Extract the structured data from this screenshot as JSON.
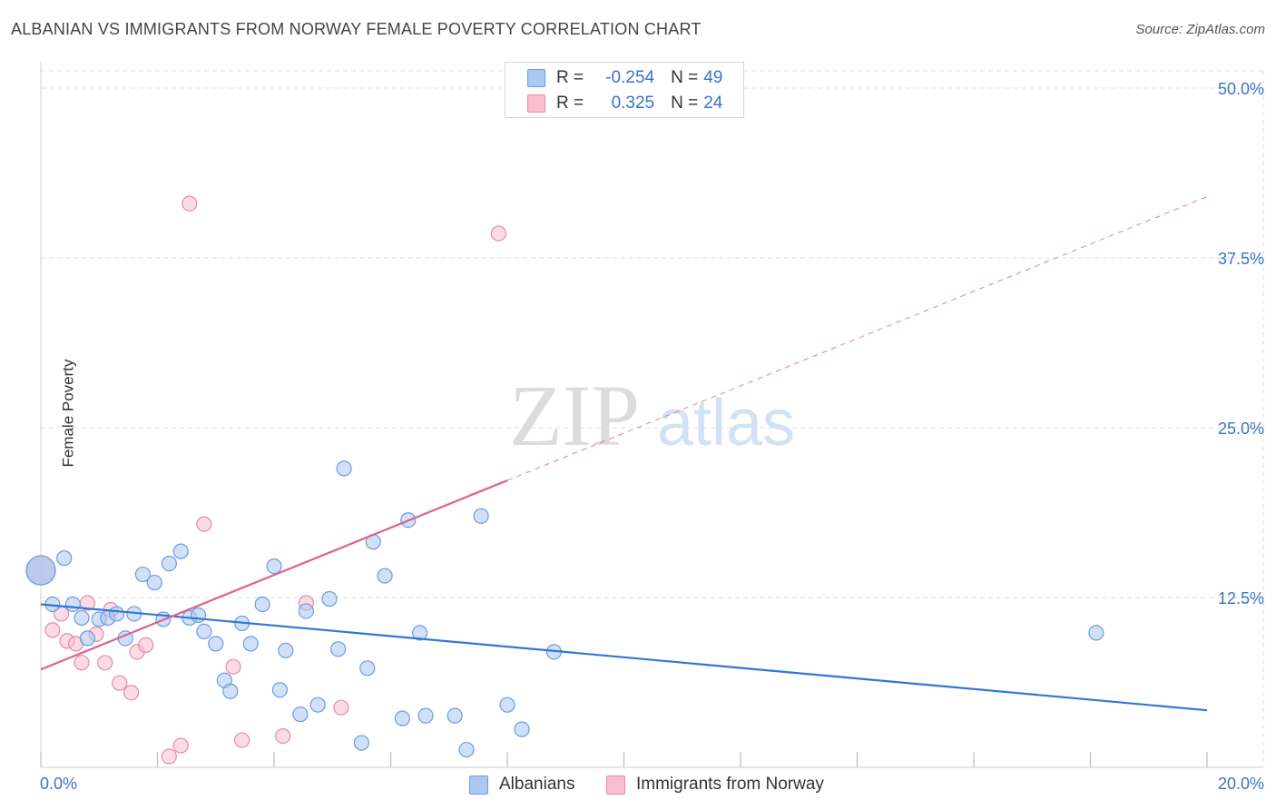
{
  "title": "ALBANIAN VS IMMIGRANTS FROM NORWAY FEMALE POVERTY CORRELATION CHART",
  "source": "Source: ZipAtlas.com",
  "colors": {
    "blue_fill": "#aac8f0",
    "blue_stroke": "#6b9be0",
    "blue_line": "#2f78d4",
    "pink_fill": "#f7bfd0",
    "pink_stroke": "#e88aa8",
    "pink_line": "#e0608a",
    "axis_text": "#3a73c9",
    "grid": "#e2e2e2"
  },
  "legend": {
    "r_label": "R =",
    "n_label": "N =",
    "series": [
      {
        "r": "-0.254",
        "n": "49"
      },
      {
        "r": "0.325",
        "n": "24"
      }
    ]
  },
  "chart_data": {
    "type": "scatter",
    "title": "ALBANIAN VS IMMIGRANTS FROM NORWAY FEMALE POVERTY CORRELATION CHART",
    "xlabel": "",
    "ylabel": "Female Poverty",
    "xlim": [
      0,
      20
    ],
    "ylim": [
      0,
      50
    ],
    "x_tick_labels": [
      {
        "value": 0,
        "label": "0.0%"
      },
      {
        "value": 20,
        "label": "20.0%"
      }
    ],
    "y_tick_labels": [
      {
        "value": 12.5,
        "label": "12.5%"
      },
      {
        "value": 25,
        "label": "25.0%"
      },
      {
        "value": 37.5,
        "label": "37.5%"
      },
      {
        "value": 50,
        "label": "50.0%"
      }
    ],
    "grid": true,
    "watermark": {
      "part1": "ZIP",
      "part2": "atlas"
    },
    "series": [
      {
        "name": "Albanians",
        "color": "blue",
        "trend": {
          "x0": 0,
          "y0": 12.0,
          "x1": 20,
          "y1": 4.2,
          "dashed_from": null
        },
        "points": [
          {
            "x": 0.0,
            "y": 14.5,
            "big": true
          },
          {
            "x": 0.4,
            "y": 15.4
          },
          {
            "x": 0.2,
            "y": 12.0
          },
          {
            "x": 0.55,
            "y": 12.0
          },
          {
            "x": 0.7,
            "y": 11.0
          },
          {
            "x": 0.8,
            "y": 9.5
          },
          {
            "x": 1.0,
            "y": 10.9
          },
          {
            "x": 1.15,
            "y": 11.0
          },
          {
            "x": 1.3,
            "y": 11.3
          },
          {
            "x": 1.45,
            "y": 9.5
          },
          {
            "x": 1.6,
            "y": 11.3
          },
          {
            "x": 1.75,
            "y": 14.2
          },
          {
            "x": 1.95,
            "y": 13.6
          },
          {
            "x": 2.1,
            "y": 10.9
          },
          {
            "x": 2.2,
            "y": 15.0
          },
          {
            "x": 2.4,
            "y": 15.9
          },
          {
            "x": 2.55,
            "y": 11.0
          },
          {
            "x": 2.7,
            "y": 11.2
          },
          {
            "x": 2.8,
            "y": 10.0
          },
          {
            "x": 3.0,
            "y": 9.1
          },
          {
            "x": 3.15,
            "y": 6.4
          },
          {
            "x": 3.25,
            "y": 5.6
          },
          {
            "x": 3.45,
            "y": 10.6
          },
          {
            "x": 3.6,
            "y": 9.1
          },
          {
            "x": 3.8,
            "y": 12.0
          },
          {
            "x": 4.0,
            "y": 14.8
          },
          {
            "x": 4.1,
            "y": 5.7
          },
          {
            "x": 4.2,
            "y": 8.6
          },
          {
            "x": 4.45,
            "y": 3.9
          },
          {
            "x": 4.55,
            "y": 11.5
          },
          {
            "x": 4.75,
            "y": 4.6
          },
          {
            "x": 4.95,
            "y": 12.4
          },
          {
            "x": 5.1,
            "y": 8.7
          },
          {
            "x": 5.2,
            "y": 22.0
          },
          {
            "x": 5.5,
            "y": 1.8
          },
          {
            "x": 5.6,
            "y": 7.3
          },
          {
            "x": 5.7,
            "y": 16.6
          },
          {
            "x": 5.9,
            "y": 14.1
          },
          {
            "x": 6.2,
            "y": 3.6
          },
          {
            "x": 6.3,
            "y": 18.2
          },
          {
            "x": 6.5,
            "y": 9.9
          },
          {
            "x": 6.6,
            "y": 3.8
          },
          {
            "x": 7.1,
            "y": 3.8
          },
          {
            "x": 7.3,
            "y": 1.3
          },
          {
            "x": 7.55,
            "y": 18.5
          },
          {
            "x": 8.0,
            "y": 4.6
          },
          {
            "x": 8.25,
            "y": 2.8
          },
          {
            "x": 8.8,
            "y": 8.5
          },
          {
            "x": 18.1,
            "y": 9.9
          }
        ]
      },
      {
        "name": "Immigrants from Norway",
        "color": "pink",
        "trend": {
          "x0": 0,
          "y0": 7.2,
          "x1": 20,
          "y1": 42.0,
          "dashed_from": 8.0
        },
        "points": [
          {
            "x": 0.0,
            "y": 14.5,
            "big": true
          },
          {
            "x": 0.2,
            "y": 10.1
          },
          {
            "x": 0.35,
            "y": 11.3
          },
          {
            "x": 0.45,
            "y": 9.3
          },
          {
            "x": 0.6,
            "y": 9.1
          },
          {
            "x": 0.7,
            "y": 7.7
          },
          {
            "x": 0.8,
            "y": 12.1
          },
          {
            "x": 0.95,
            "y": 9.8
          },
          {
            "x": 1.1,
            "y": 7.7
          },
          {
            "x": 1.2,
            "y": 11.6
          },
          {
            "x": 1.35,
            "y": 6.2
          },
          {
            "x": 1.55,
            "y": 5.5
          },
          {
            "x": 1.65,
            "y": 8.5
          },
          {
            "x": 1.8,
            "y": 9.0
          },
          {
            "x": 2.2,
            "y": 0.8
          },
          {
            "x": 2.4,
            "y": 1.6
          },
          {
            "x": 2.55,
            "y": 41.5
          },
          {
            "x": 2.8,
            "y": 17.9
          },
          {
            "x": 3.3,
            "y": 7.4
          },
          {
            "x": 3.45,
            "y": 2.0
          },
          {
            "x": 4.15,
            "y": 2.3
          },
          {
            "x": 4.55,
            "y": 12.1
          },
          {
            "x": 5.15,
            "y": 4.4
          },
          {
            "x": 7.85,
            "y": 39.3
          }
        ]
      }
    ]
  }
}
